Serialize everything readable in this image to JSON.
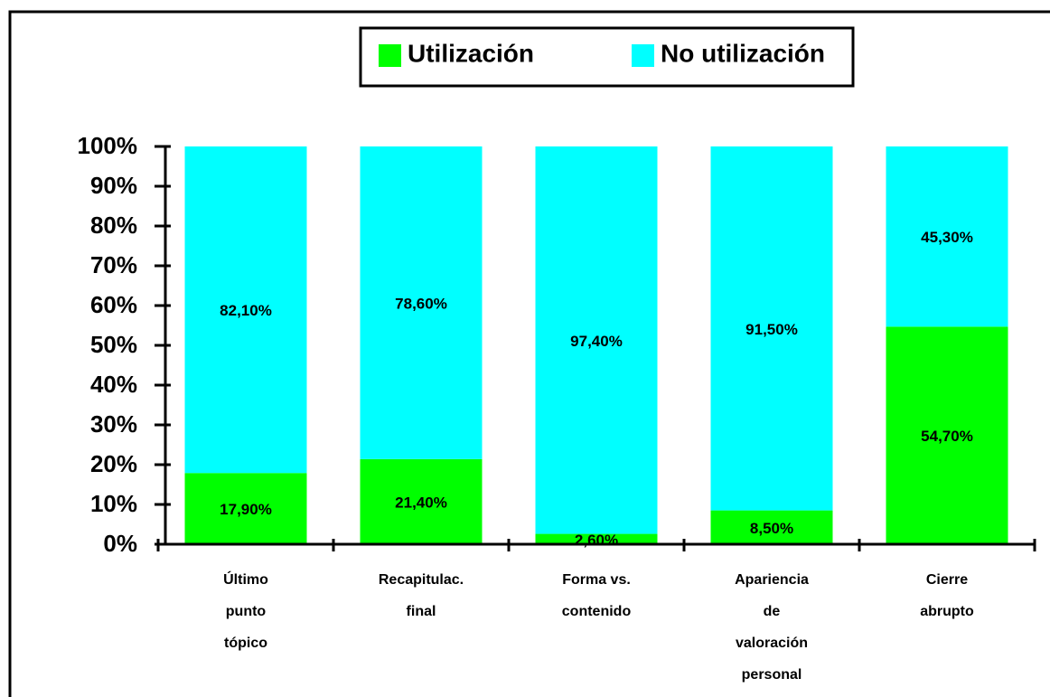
{
  "chart_data": {
    "type": "stacked_bar",
    "categories": [
      [
        "Último",
        "punto",
        "tópico"
      ],
      [
        "Recapitulac.",
        "final"
      ],
      [
        "Forma vs.",
        "contenido"
      ],
      [
        "Apariencia",
        "de",
        "valoración",
        "personal"
      ],
      [
        "Cierre",
        "abrupto"
      ]
    ],
    "series": [
      {
        "name": "Utilización",
        "color": "#00ff00",
        "values": [
          17.9,
          21.4,
          2.6,
          8.5,
          54.7
        ],
        "value_labels": [
          "17,90%",
          "21,40%",
          "2,60%",
          "8,50%",
          "54,70%"
        ]
      },
      {
        "name": "No utilización",
        "color": "#00ffff",
        "values": [
          82.1,
          78.6,
          97.4,
          91.5,
          45.3
        ],
        "value_labels": [
          "82,10%",
          "78,60%",
          "97,40%",
          "91,50%",
          "45,30%"
        ]
      }
    ],
    "ylim": [
      0,
      100
    ],
    "yticks": [
      {
        "value": 0,
        "label": "0%"
      },
      {
        "value": 10,
        "label": "10%"
      },
      {
        "value": 20,
        "label": "20%"
      },
      {
        "value": 30,
        "label": "30%"
      },
      {
        "value": 40,
        "label": "40%"
      },
      {
        "value": 50,
        "label": "50%"
      },
      {
        "value": 60,
        "label": "60%"
      },
      {
        "value": 70,
        "label": "70%"
      },
      {
        "value": 80,
        "label": "80%"
      },
      {
        "value": 90,
        "label": "90%"
      },
      {
        "value": 100,
        "label": "100%"
      }
    ],
    "legend": "top"
  }
}
